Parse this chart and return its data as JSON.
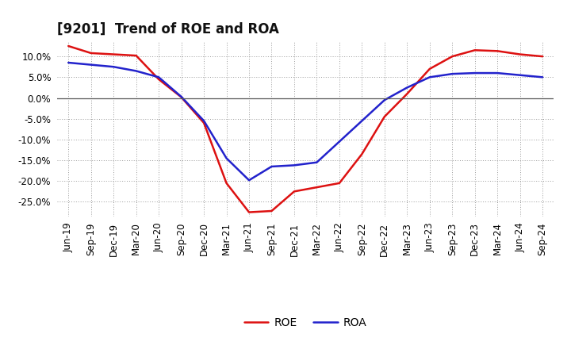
{
  "title": "[9201]  Trend of ROE and ROA",
  "x_labels": [
    "Jun-19",
    "Sep-19",
    "Dec-19",
    "Mar-20",
    "Jun-20",
    "Sep-20",
    "Dec-20",
    "Mar-21",
    "Jun-21",
    "Sep-21",
    "Dec-21",
    "Mar-22",
    "Jun-22",
    "Sep-22",
    "Dec-22",
    "Mar-23",
    "Jun-23",
    "Sep-23",
    "Dec-23",
    "Mar-24",
    "Jun-24",
    "Sep-24"
  ],
  "roe": [
    12.5,
    10.8,
    10.5,
    10.2,
    4.5,
    0.2,
    -6.0,
    -20.5,
    -27.5,
    -27.2,
    -22.5,
    -21.5,
    -20.5,
    -13.5,
    -4.5,
    1.0,
    7.0,
    10.0,
    11.5,
    11.3,
    10.5,
    10.0
  ],
  "roa": [
    8.5,
    8.0,
    7.5,
    6.5,
    5.0,
    0.3,
    -5.5,
    -14.5,
    -19.8,
    -16.5,
    -16.2,
    -15.5,
    -10.5,
    -5.5,
    -0.5,
    2.5,
    5.0,
    5.8,
    6.0,
    6.0,
    5.5,
    5.0
  ],
  "roe_color": "#dd1111",
  "roa_color": "#2222cc",
  "ylim": [
    -28.5,
    13.5
  ],
  "yticks": [
    -25.0,
    -20.0,
    -15.0,
    -10.0,
    -5.0,
    0.0,
    5.0,
    10.0
  ],
  "background_color": "#ffffff",
  "grid_color": "#999999",
  "line_width": 1.8,
  "title_fontsize": 12,
  "tick_fontsize": 8.5
}
